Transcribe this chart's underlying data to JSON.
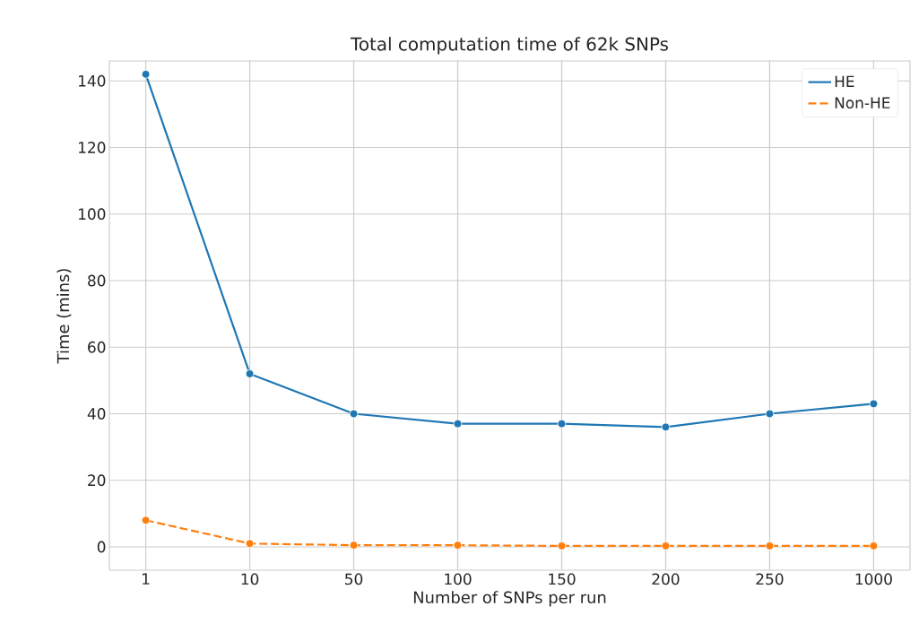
{
  "chart_data": {
    "type": "line",
    "title": "Total computation time of 62k SNPs",
    "xlabel": "Number of SNPs per run",
    "ylabel": "Time (mins)",
    "categories": [
      "1",
      "10",
      "50",
      "100",
      "150",
      "200",
      "250",
      "1000"
    ],
    "series": [
      {
        "name": "HE",
        "color": "#1f77b4",
        "line_style": "solid",
        "values": [
          142,
          52,
          40,
          37,
          37,
          36,
          40,
          43
        ]
      },
      {
        "name": "Non-HE",
        "color": "#ff7f0e",
        "line_style": "dashed",
        "values": [
          8,
          1,
          0.5,
          0.5,
          0.3,
          0.3,
          0.3,
          0.3
        ]
      }
    ],
    "ylim": [
      -7,
      146
    ],
    "yticks": [
      0,
      20,
      40,
      60,
      80,
      100,
      120,
      140
    ],
    "grid": true,
    "legend": "top right",
    "marker": "circle"
  }
}
